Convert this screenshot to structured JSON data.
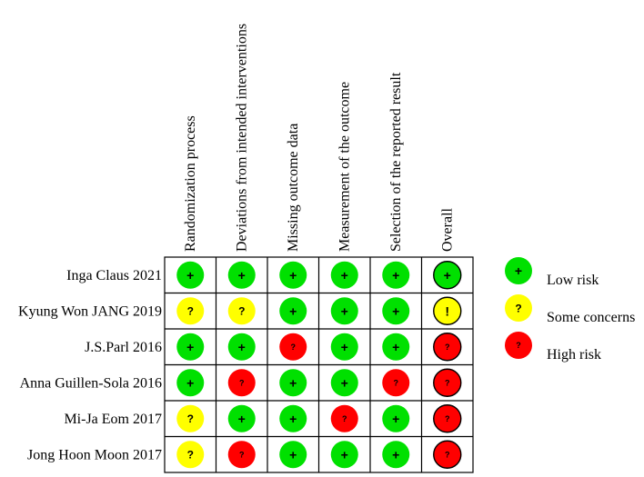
{
  "domains": [
    "Randomization process",
    "Deviations from intended interventions",
    "Missing outcome data",
    "Measurement of the outcome",
    "Selection of the reported result",
    "Overall"
  ],
  "studies": [
    {
      "name": "Inga Claus 2021",
      "ratings": [
        "low",
        "low",
        "low",
        "low",
        "low",
        "low"
      ]
    },
    {
      "name": "Kyung Won JANG 2019",
      "ratings": [
        "some",
        "some",
        "low",
        "low",
        "low",
        "some"
      ]
    },
    {
      "name": "J.S.Parl 2016",
      "ratings": [
        "low",
        "low",
        "high",
        "low",
        "low",
        "high"
      ]
    },
    {
      "name": "Anna Guillen-Sola 2016",
      "ratings": [
        "low",
        "high",
        "low",
        "low",
        "high",
        "high"
      ]
    },
    {
      "name": "Mi-Ja Eom 2017",
      "ratings": [
        "some",
        "low",
        "low",
        "high",
        "low",
        "high"
      ]
    },
    {
      "name": "Jong Hoon Moon 2017",
      "ratings": [
        "some",
        "high",
        "low",
        "low",
        "low",
        "high"
      ]
    }
  ],
  "levels": {
    "low": {
      "color": "#00e000",
      "symbol": "+",
      "overall_symbol": "+"
    },
    "some": {
      "color": "#ffff00",
      "symbol": "?",
      "overall_symbol": "!"
    },
    "high": {
      "color": "#ff0000",
      "symbol": "?",
      "overall_symbol": "?"
    }
  },
  "legend": [
    {
      "level": "low",
      "label": "Low risk"
    },
    {
      "level": "some",
      "label": "Some concerns"
    },
    {
      "level": "high",
      "label": "High risk"
    }
  ]
}
